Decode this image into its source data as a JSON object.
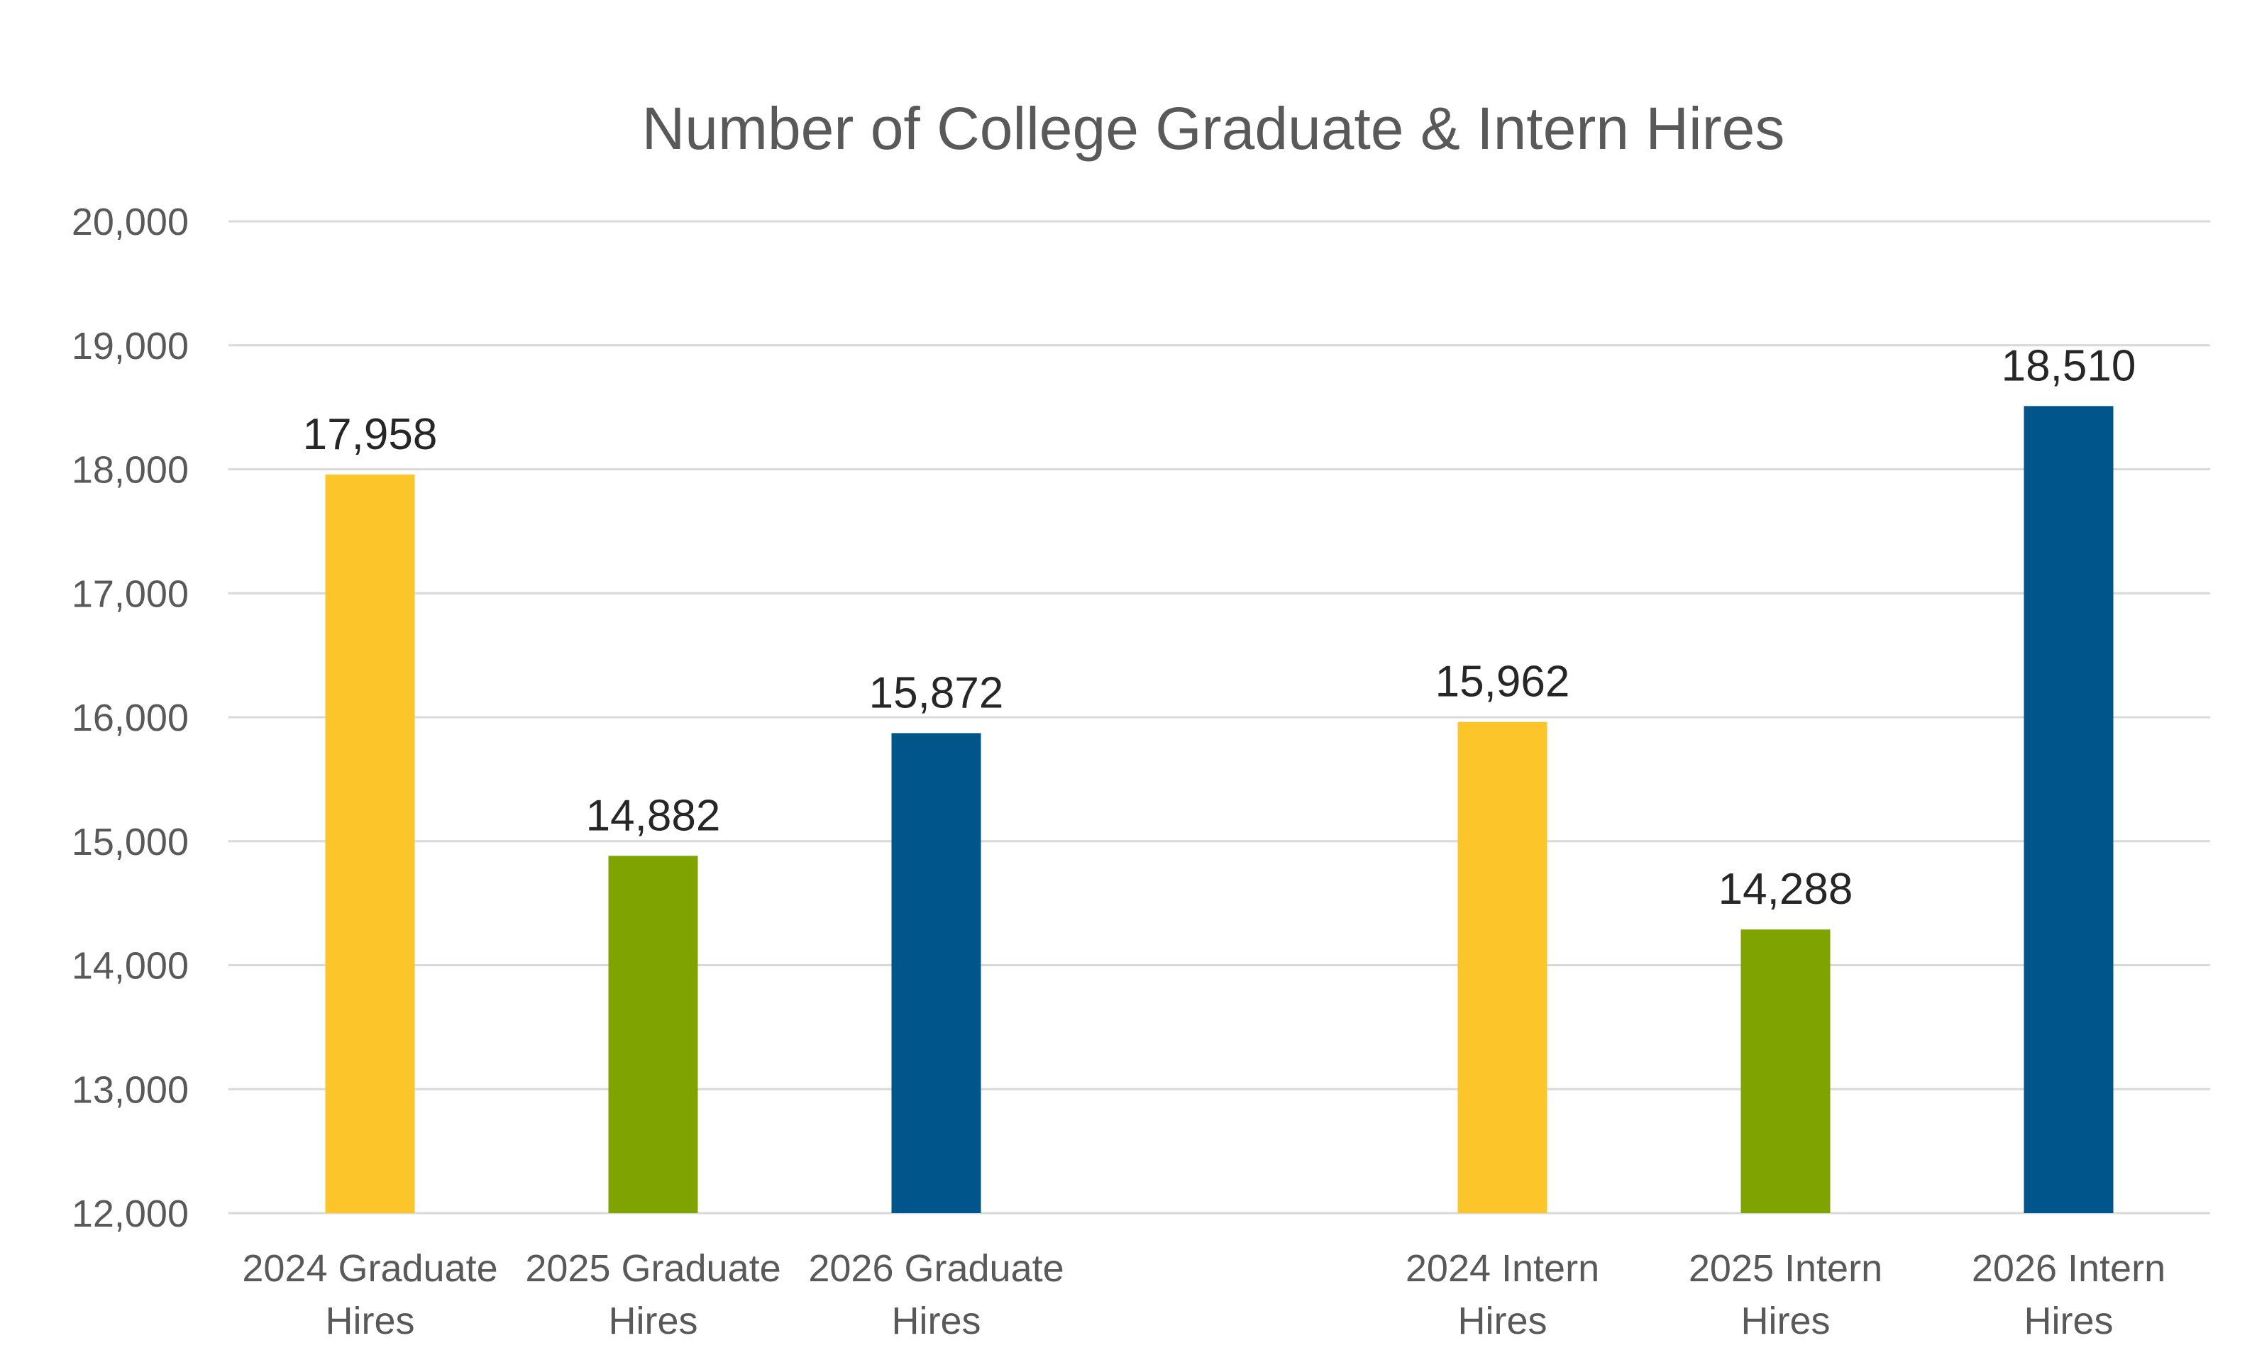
{
  "chart_data": {
    "type": "bar",
    "title": "Number of College Graduate & Intern Hires",
    "xlabel": "",
    "ylabel": "",
    "ylim": [
      12000,
      20000
    ],
    "yticks": [
      12000,
      13000,
      14000,
      15000,
      16000,
      17000,
      18000,
      19000,
      20000
    ],
    "ytick_labels": [
      "12,000",
      "13,000",
      "14,000",
      "15,000",
      "16,000",
      "17,000",
      "18,000",
      "19,000",
      "20,000"
    ],
    "grid": true,
    "legend": "none",
    "categories": [
      [
        "2024 Graduate",
        "Hires"
      ],
      [
        "2025 Graduate",
        "Hires"
      ],
      [
        "2026 Graduate",
        "Hires"
      ],
      [
        "",
        ""
      ],
      [
        "2024 Intern",
        "Hires"
      ],
      [
        "2025 Intern",
        "Hires"
      ],
      [
        "2026 Intern",
        "Hires"
      ]
    ],
    "values": [
      17958,
      14882,
      15872,
      null,
      15962,
      14288,
      18510
    ],
    "data_labels": [
      "17,958",
      "14,882",
      "15,872",
      "",
      "15,962",
      "14,288",
      "18,510"
    ],
    "colors": [
      "#FCC62A",
      "#7FA301",
      "#00568A",
      "",
      "#FCC62A",
      "#7FA301",
      "#00568A"
    ]
  }
}
